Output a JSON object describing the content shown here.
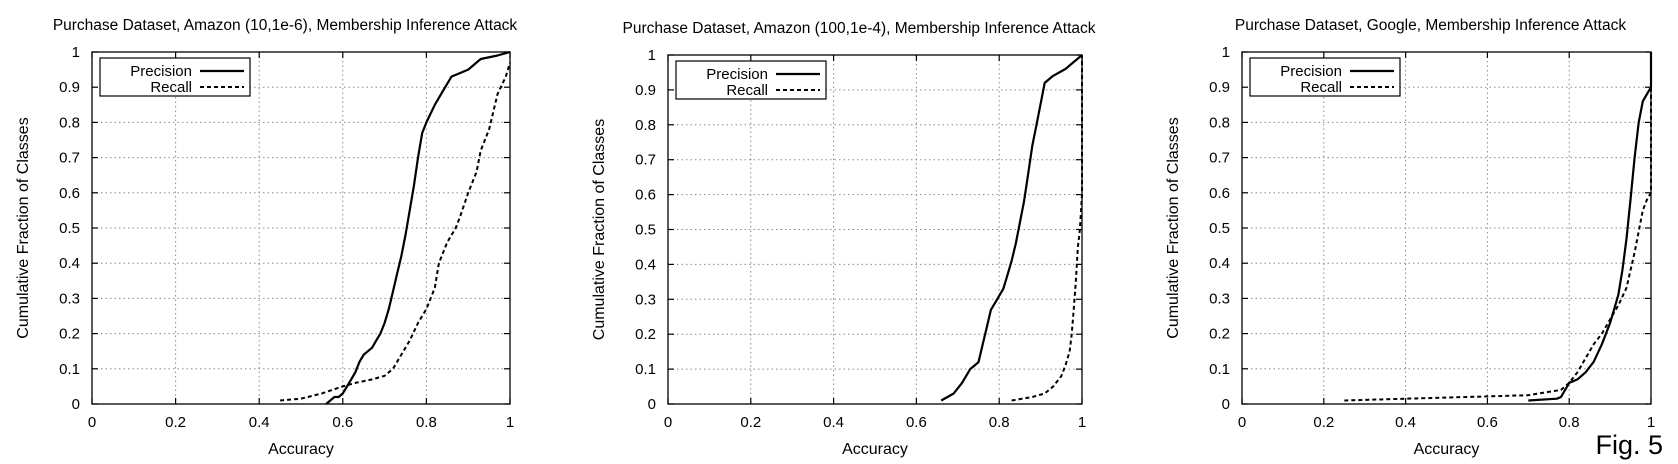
{
  "figure_label": "Fig. 5",
  "chart_data": [
    {
      "type": "line",
      "title": "Purchase Dataset, Amazon (10,1e-6), Membership Inference Attack",
      "xlabel": "Accuracy",
      "ylabel": "Cumulative Fraction of Classes",
      "xlim": [
        0,
        1
      ],
      "ylim": [
        0,
        1
      ],
      "xticks": [
        "0",
        "0.2",
        "0.4",
        "0.6",
        "0.8",
        "1"
      ],
      "yticks": [
        "0",
        "0.1",
        "0.2",
        "0.3",
        "0.4",
        "0.5",
        "0.6",
        "0.7",
        "0.8",
        "0.9",
        "1"
      ],
      "grid": true,
      "legend_position": "top-left",
      "series": [
        {
          "name": "Precision",
          "style": "solid",
          "points": [
            [
              0.56,
              0.0
            ],
            [
              0.57,
              0.01
            ],
            [
              0.58,
              0.02
            ],
            [
              0.59,
              0.02
            ],
            [
              0.6,
              0.03
            ],
            [
              0.61,
              0.05
            ],
            [
              0.62,
              0.07
            ],
            [
              0.63,
              0.09
            ],
            [
              0.64,
              0.12
            ],
            [
              0.65,
              0.14
            ],
            [
              0.66,
              0.15
            ],
            [
              0.67,
              0.16
            ],
            [
              0.68,
              0.18
            ],
            [
              0.69,
              0.2
            ],
            [
              0.7,
              0.23
            ],
            [
              0.71,
              0.27
            ],
            [
              0.72,
              0.32
            ],
            [
              0.73,
              0.37
            ],
            [
              0.74,
              0.42
            ],
            [
              0.75,
              0.48
            ],
            [
              0.76,
              0.55
            ],
            [
              0.77,
              0.62
            ],
            [
              0.78,
              0.7
            ],
            [
              0.79,
              0.77
            ],
            [
              0.8,
              0.8
            ],
            [
              0.82,
              0.85
            ],
            [
              0.84,
              0.89
            ],
            [
              0.86,
              0.93
            ],
            [
              0.9,
              0.95
            ],
            [
              0.93,
              0.98
            ],
            [
              0.97,
              0.99
            ],
            [
              1.0,
              1.0
            ]
          ]
        },
        {
          "name": "Recall",
          "style": "dashed",
          "points": [
            [
              0.45,
              0.01
            ],
            [
              0.5,
              0.015
            ],
            [
              0.55,
              0.03
            ],
            [
              0.6,
              0.05
            ],
            [
              0.63,
              0.06
            ],
            [
              0.67,
              0.07
            ],
            [
              0.7,
              0.08
            ],
            [
              0.72,
              0.1
            ],
            [
              0.74,
              0.14
            ],
            [
              0.76,
              0.18
            ],
            [
              0.78,
              0.23
            ],
            [
              0.8,
              0.27
            ],
            [
              0.82,
              0.33
            ],
            [
              0.83,
              0.4
            ],
            [
              0.85,
              0.46
            ],
            [
              0.87,
              0.5
            ],
            [
              0.88,
              0.53
            ],
            [
              0.9,
              0.6
            ],
            [
              0.92,
              0.66
            ],
            [
              0.93,
              0.72
            ],
            [
              0.95,
              0.78
            ],
            [
              0.96,
              0.83
            ],
            [
              0.97,
              0.88
            ],
            [
              0.99,
              0.93
            ],
            [
              1.0,
              0.97
            ]
          ]
        }
      ]
    },
    {
      "type": "line",
      "title": "Purchase Dataset, Amazon (100,1e-4), Membership Inference Attack",
      "xlabel": "Accuracy",
      "ylabel": "Cumulative Fraction of Classes",
      "xlim": [
        0,
        1
      ],
      "ylim": [
        0,
        1
      ],
      "xticks": [
        "0",
        "0.2",
        "0.4",
        "0.6",
        "0.8",
        "1"
      ],
      "yticks": [
        "0",
        "0.1",
        "0.2",
        "0.3",
        "0.4",
        "0.5",
        "0.6",
        "0.7",
        "0.8",
        "0.9",
        "1"
      ],
      "grid": true,
      "legend_position": "top-left",
      "series": [
        {
          "name": "Precision",
          "style": "solid",
          "points": [
            [
              0.66,
              0.01
            ],
            [
              0.69,
              0.03
            ],
            [
              0.71,
              0.06
            ],
            [
              0.72,
              0.08
            ],
            [
              0.73,
              0.1
            ],
            [
              0.74,
              0.11
            ],
            [
              0.75,
              0.12
            ],
            [
              0.76,
              0.17
            ],
            [
              0.77,
              0.22
            ],
            [
              0.78,
              0.27
            ],
            [
              0.79,
              0.29
            ],
            [
              0.8,
              0.31
            ],
            [
              0.81,
              0.33
            ],
            [
              0.82,
              0.37
            ],
            [
              0.83,
              0.41
            ],
            [
              0.84,
              0.46
            ],
            [
              0.85,
              0.52
            ],
            [
              0.86,
              0.58
            ],
            [
              0.87,
              0.66
            ],
            [
              0.88,
              0.74
            ],
            [
              0.89,
              0.8
            ],
            [
              0.9,
              0.86
            ],
            [
              0.91,
              0.92
            ],
            [
              0.93,
              0.94
            ],
            [
              0.96,
              0.96
            ],
            [
              0.99,
              0.99
            ],
            [
              1.0,
              1.0
            ]
          ]
        },
        {
          "name": "Recall",
          "style": "dashed",
          "points": [
            [
              0.83,
              0.01
            ],
            [
              0.88,
              0.02
            ],
            [
              0.91,
              0.03
            ],
            [
              0.93,
              0.05
            ],
            [
              0.95,
              0.08
            ],
            [
              0.96,
              0.11
            ],
            [
              0.97,
              0.15
            ],
            [
              0.975,
              0.2
            ],
            [
              0.98,
              0.27
            ],
            [
              0.985,
              0.35
            ],
            [
              0.99,
              0.45
            ],
            [
              0.995,
              0.5
            ],
            [
              1.0,
              0.6
            ],
            [
              1.0,
              1.0
            ]
          ]
        }
      ]
    },
    {
      "type": "line",
      "title": "Purchase Dataset, Google, Membership Inference Attack",
      "xlabel": "Accuracy",
      "ylabel": "Cumulative Fraction of Classes",
      "xlim": [
        0,
        1
      ],
      "ylim": [
        0,
        1
      ],
      "xticks": [
        "0",
        "0.2",
        "0.4",
        "0.6",
        "0.8",
        "1"
      ],
      "yticks": [
        "0",
        "0.1",
        "0.2",
        "0.3",
        "0.4",
        "0.5",
        "0.6",
        "0.7",
        "0.8",
        "0.9",
        "1"
      ],
      "grid": true,
      "legend_position": "top-left",
      "series": [
        {
          "name": "Precision",
          "style": "solid",
          "points": [
            [
              0.7,
              0.01
            ],
            [
              0.77,
              0.015
            ],
            [
              0.78,
              0.02
            ],
            [
              0.79,
              0.04
            ],
            [
              0.8,
              0.06
            ],
            [
              0.82,
              0.07
            ],
            [
              0.84,
              0.09
            ],
            [
              0.86,
              0.12
            ],
            [
              0.88,
              0.17
            ],
            [
              0.9,
              0.23
            ],
            [
              0.91,
              0.27
            ],
            [
              0.92,
              0.31
            ],
            [
              0.93,
              0.38
            ],
            [
              0.94,
              0.47
            ],
            [
              0.95,
              0.58
            ],
            [
              0.96,
              0.7
            ],
            [
              0.97,
              0.8
            ],
            [
              0.98,
              0.86
            ],
            [
              0.99,
              0.88
            ],
            [
              1.0,
              0.9
            ],
            [
              1.0,
              1.0
            ]
          ]
        },
        {
          "name": "Recall",
          "style": "dashed",
          "points": [
            [
              0.25,
              0.01
            ],
            [
              0.4,
              0.015
            ],
            [
              0.55,
              0.02
            ],
            [
              0.7,
              0.025
            ],
            [
              0.78,
              0.04
            ],
            [
              0.8,
              0.06
            ],
            [
              0.82,
              0.09
            ],
            [
              0.84,
              0.13
            ],
            [
              0.86,
              0.17
            ],
            [
              0.88,
              0.2
            ],
            [
              0.9,
              0.24
            ],
            [
              0.92,
              0.28
            ],
            [
              0.94,
              0.33
            ],
            [
              0.95,
              0.38
            ],
            [
              0.96,
              0.43
            ],
            [
              0.97,
              0.49
            ],
            [
              0.98,
              0.55
            ],
            [
              0.99,
              0.58
            ],
            [
              1.0,
              0.6
            ],
            [
              1.0,
              1.0
            ]
          ]
        }
      ]
    }
  ]
}
